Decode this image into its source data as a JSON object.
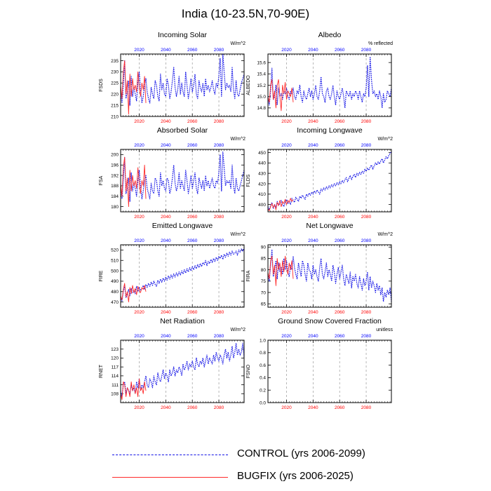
{
  "title": "India (10-23.5N,70-90E)",
  "colors": {
    "control": "#1010e6",
    "bugfix": "#ff2a2a",
    "top_axis": "#0000ff",
    "bottom_axis": "#ff0000",
    "grid": "#999999"
  },
  "legend": {
    "control_label": "CONTROL (yrs 2006-2099)",
    "bugfix_label": "BUGFIX (yrs 2006-2025)"
  },
  "chart_data": [
    {
      "type": "line",
      "title": "Incoming Solar",
      "units": "W/m^2",
      "ylabel": "FSDS",
      "xlim": [
        2006,
        2099
      ],
      "ylim": [
        210,
        238
      ],
      "yticks": [
        210,
        215,
        220,
        225,
        230,
        235
      ],
      "xticks": [
        2020,
        2040,
        2060,
        2080
      ],
      "grid_x": "dashed",
      "series": [
        {
          "name": "CONTROL",
          "x_start": 2006,
          "x_step": 1,
          "values": [
            222,
            216,
            224,
            235,
            218,
            221,
            226,
            215,
            228,
            219,
            223,
            220,
            217,
            225,
            230,
            222,
            216,
            219,
            224,
            227,
            221,
            218,
            216,
            223,
            220,
            218,
            226,
            224,
            219,
            217,
            229,
            222,
            225,
            220,
            219,
            227,
            224,
            218,
            221,
            226,
            232,
            223,
            219,
            222,
            228,
            220,
            225,
            221,
            219,
            230,
            224,
            218,
            222,
            227,
            221,
            224,
            229,
            220,
            218,
            226,
            223,
            221,
            225,
            219,
            227,
            222,
            224,
            221,
            223,
            226,
            222,
            220,
            225,
            223,
            228,
            236,
            219,
            238,
            230,
            222,
            225,
            223,
            224,
            221,
            232,
            222,
            218,
            226,
            220,
            219,
            222,
            225,
            227,
            229
          ]
        },
        {
          "name": "BUGFIX",
          "x_start": 2006,
          "x_step": 1,
          "values": [
            224,
            218,
            230,
            235,
            220,
            226,
            211,
            229,
            219,
            227,
            222,
            224,
            221,
            230,
            223,
            219,
            225,
            222,
            228,
            216
          ]
        }
      ]
    },
    {
      "type": "line",
      "title": "Albedo",
      "units": "% reflected",
      "ylabel": "ALBEDO",
      "xlim": [
        2006,
        2099
      ],
      "ylim": [
        14.65,
        15.75
      ],
      "yticks": [
        14.8,
        15.0,
        15.2,
        15.4,
        15.6
      ],
      "xticks": [
        2020,
        2040,
        2060,
        2080
      ],
      "grid_x": "dashed",
      "series": [
        {
          "name": "CONTROL",
          "x_start": 2006,
          "x_step": 1,
          "values": [
            15.0,
            14.85,
            15.1,
            15.5,
            14.95,
            15.0,
            15.2,
            14.85,
            15.15,
            15.0,
            15.05,
            14.95,
            15.1,
            15.05,
            15.15,
            15.0,
            14.95,
            15.1,
            15.05,
            15.15,
            15.0,
            14.95,
            15.1,
            15.05,
            15.2,
            15.0,
            14.9,
            15.1,
            15.0,
            14.95,
            15.05,
            15.15,
            15.0,
            15.1,
            14.95,
            15.05,
            15.2,
            15.0,
            14.95,
            15.1,
            15.35,
            15.05,
            15.0,
            14.9,
            15.1,
            15.15,
            15.0,
            14.95,
            15.05,
            15.2,
            15.0,
            14.85,
            15.1,
            15.0,
            14.95,
            15.05,
            15.15,
            15.0,
            14.8,
            15.1,
            15.05,
            15.0,
            15.1,
            14.95,
            15.05,
            15.0,
            15.1,
            15.05,
            14.95,
            15.1,
            15.0,
            14.9,
            15.05,
            15.0,
            15.15,
            15.55,
            15.0,
            15.7,
            15.3,
            15.05,
            15.1,
            15.0,
            15.05,
            14.95,
            15.1,
            15.0,
            14.8,
            15.05,
            14.9,
            14.95,
            15.1,
            15.05,
            15.0,
            15.15
          ]
        },
        {
          "name": "BUGFIX",
          "x_start": 2006,
          "x_step": 1,
          "values": [
            15.0,
            14.9,
            15.2,
            15.3,
            14.95,
            15.1,
            14.8,
            15.2,
            15.3,
            15.0,
            14.75,
            15.2,
            15.05,
            15.25,
            14.95,
            15.1,
            15.05,
            15.0,
            15.15,
            14.9
          ]
        }
      ]
    },
    {
      "type": "line",
      "title": "Absorbed Solar",
      "units": "W/m^2",
      "ylabel": "FSA",
      "xlim": [
        2006,
        2099
      ],
      "ylim": [
        178,
        202
      ],
      "yticks": [
        180,
        184,
        188,
        192,
        196,
        200
      ],
      "xticks": [
        2020,
        2040,
        2060,
        2080
      ],
      "grid_x": "dashed",
      "series": [
        {
          "name": "CONTROL",
          "x_start": 2006,
          "x_step": 1,
          "values": [
            188,
            183,
            190,
            199,
            185,
            187,
            191,
            182,
            193,
            186,
            189,
            187,
            184,
            190,
            194,
            188,
            183,
            186,
            190,
            192,
            187,
            185,
            183,
            189,
            186,
            185,
            191,
            190,
            186,
            184,
            193,
            188,
            190,
            187,
            186,
            191,
            190,
            185,
            187,
            191,
            196,
            189,
            186,
            188,
            193,
            187,
            190,
            188,
            186,
            194,
            190,
            185,
            188,
            192,
            187,
            190,
            193,
            187,
            185,
            191,
            189,
            187,
            190,
            186,
            192,
            188,
            190,
            187,
            189,
            191,
            188,
            187,
            190,
            189,
            193,
            200,
            186,
            201,
            195,
            188,
            190,
            189,
            190,
            187,
            196,
            188,
            185,
            191,
            187,
            186,
            188,
            190,
            192,
            194
          ]
        },
        {
          "name": "BUGFIX",
          "x_start": 2006,
          "x_step": 1,
          "values": [
            189,
            184,
            195,
            199,
            186,
            191,
            180,
            194,
            186,
            192,
            188,
            190,
            187,
            195,
            189,
            185,
            190,
            188,
            196,
            183
          ]
        }
      ]
    },
    {
      "type": "line",
      "title": "Incoming Longwave",
      "units": "W/m^2",
      "ylabel": "FLDS",
      "xlim": [
        2006,
        2099
      ],
      "ylim": [
        393,
        453
      ],
      "yticks": [
        400,
        410,
        420,
        430,
        440,
        450
      ],
      "xticks": [
        2020,
        2040,
        2060,
        2080
      ],
      "grid_x": "dashed",
      "series": [
        {
          "name": "CONTROL",
          "x_start": 2006,
          "x_step": 1,
          "values": [
            398,
            395,
            399,
            402,
            396,
            400,
            397,
            403,
            399,
            401,
            404,
            400,
            398,
            402,
            405,
            401,
            403,
            400,
            406,
            404,
            402,
            407,
            405,
            403,
            408,
            406,
            409,
            407,
            405,
            410,
            408,
            411,
            409,
            412,
            410,
            413,
            411,
            414,
            412,
            410,
            415,
            413,
            416,
            414,
            417,
            415,
            418,
            416,
            419,
            417,
            420,
            418,
            421,
            419,
            422,
            420,
            423,
            421,
            424,
            426,
            422,
            425,
            428,
            424,
            427,
            429,
            426,
            430,
            428,
            431,
            429,
            432,
            430,
            434,
            432,
            435,
            433,
            436,
            438,
            434,
            437,
            440,
            438,
            441,
            439,
            442,
            444,
            440,
            443,
            446,
            444,
            447,
            449,
            451
          ]
        },
        {
          "name": "BUGFIX",
          "x_start": 2006,
          "x_step": 1,
          "values": [
            396,
            394,
            398,
            401,
            397,
            400,
            395,
            402,
            399,
            404,
            398,
            403,
            401,
            405,
            400,
            404,
            402,
            406,
            403,
            405
          ]
        }
      ]
    },
    {
      "type": "line",
      "title": "Emitted Longwave",
      "units": "W/m^2",
      "ylabel": "FIRE",
      "xlim": [
        2006,
        2099
      ],
      "ylim": [
        465,
        525
      ],
      "yticks": [
        470,
        480,
        490,
        500,
        510,
        520
      ],
      "xticks": [
        2020,
        2040,
        2060,
        2080
      ],
      "grid_x": "dashed",
      "series": [
        {
          "name": "CONTROL",
          "x_start": 2006,
          "x_step": 1,
          "values": [
            475,
            471,
            480,
            486,
            474,
            478,
            482,
            476,
            483,
            479,
            481,
            478,
            485,
            480,
            484,
            481,
            483,
            486,
            482,
            487,
            484,
            488,
            485,
            489,
            486,
            490,
            487,
            485,
            491,
            488,
            492,
            489,
            493,
            490,
            494,
            491,
            495,
            492,
            496,
            493,
            497,
            494,
            498,
            495,
            499,
            496,
            500,
            497,
            501,
            498,
            502,
            499,
            503,
            500,
            504,
            501,
            505,
            502,
            506,
            503,
            507,
            504,
            508,
            506,
            510,
            505,
            509,
            507,
            511,
            508,
            512,
            509,
            513,
            510,
            514,
            512,
            515,
            511,
            516,
            513,
            517,
            514,
            518,
            515,
            519,
            516,
            517,
            519,
            515,
            520,
            518,
            521,
            519,
            522
          ]
        },
        {
          "name": "BUGFIX",
          "x_start": 2006,
          "x_step": 1,
          "values": [
            476,
            472,
            482,
            488,
            475,
            480,
            470,
            484,
            478,
            486,
            479,
            483,
            477,
            485,
            481,
            479,
            484,
            482,
            486,
            480
          ]
        }
      ]
    },
    {
      "type": "line",
      "title": "Net Longwave",
      "units": "W/m^2",
      "ylabel": "FIRA",
      "xlim": [
        2006,
        2099
      ],
      "ylim": [
        63.5,
        91
      ],
      "yticks": [
        65.0,
        70.0,
        75.0,
        80.0,
        85.0,
        90.0
      ],
      "xticks": [
        2020,
        2040,
        2060,
        2080
      ],
      "grid_x": "dashed",
      "series": [
        {
          "name": "CONTROL",
          "x_start": 2006,
          "x_step": 1,
          "values": [
            78,
            75,
            82,
            89,
            77,
            80,
            84,
            76,
            83,
            79,
            81,
            78,
            85,
            80,
            84,
            79,
            77,
            82,
            80,
            86,
            81,
            78,
            76,
            83,
            80,
            77,
            84,
            82,
            78,
            75,
            83,
            80,
            79,
            76,
            82,
            78,
            80,
            77,
            75,
            81,
            85,
            78,
            76,
            79,
            83,
            77,
            80,
            78,
            75,
            82,
            79,
            74,
            78,
            81,
            76,
            79,
            82,
            76,
            73,
            78,
            76,
            74,
            79,
            72,
            77,
            75,
            78,
            74,
            72,
            77,
            74,
            71,
            76,
            73,
            75,
            79,
            71,
            77,
            72,
            75,
            73,
            70,
            74,
            71,
            73,
            69,
            72,
            66,
            70,
            68,
            71,
            69,
            72,
            66
          ]
        },
        {
          "name": "BUGFIX",
          "x_start": 2006,
          "x_step": 1,
          "values": [
            79,
            76,
            84,
            86,
            78,
            82,
            73,
            85,
            80,
            83,
            77,
            84,
            79,
            86,
            81,
            78,
            83,
            80,
            84,
            76
          ]
        }
      ]
    },
    {
      "type": "line",
      "title": "Net Radiation",
      "units": "W/m^2",
      "ylabel": "RNET",
      "xlim": [
        2006,
        2099
      ],
      "ylim": [
        105,
        126
      ],
      "yticks": [
        108,
        111,
        114,
        117,
        120,
        123
      ],
      "xticks": [
        2020,
        2040,
        2060,
        2080
      ],
      "grid_x": "dashed",
      "series": [
        {
          "name": "CONTROL",
          "x_start": 2006,
          "x_step": 1,
          "values": [
            109,
            107,
            111,
            112,
            108,
            110,
            109,
            108,
            111,
            109,
            110,
            108,
            112,
            110,
            113,
            109,
            111,
            110,
            112,
            114,
            111,
            110,
            113,
            112,
            110,
            114,
            112,
            111,
            115,
            113,
            112,
            114,
            116,
            113,
            115,
            114,
            112,
            116,
            114,
            115,
            117,
            114,
            116,
            115,
            117,
            116,
            114,
            118,
            116,
            117,
            119,
            116,
            118,
            117,
            119,
            117,
            116,
            120,
            118,
            117,
            119,
            118,
            120,
            117,
            119,
            121,
            118,
            120,
            119,
            118,
            121,
            119,
            122,
            120,
            119,
            121,
            120,
            118,
            121,
            123,
            120,
            122,
            119,
            121,
            124,
            120,
            122,
            125,
            121,
            123,
            121,
            122,
            125,
            120
          ]
        },
        {
          "name": "BUGFIX",
          "x_start": 2006,
          "x_step": 1,
          "values": [
            108,
            106,
            112,
            111,
            107,
            110,
            109,
            107,
            112,
            109,
            111,
            108,
            110,
            107,
            113,
            109,
            110,
            108,
            112,
            109
          ]
        }
      ]
    },
    {
      "type": "line",
      "title": "Ground Snow Covered Fraction",
      "units": "unitless",
      "ylabel": "FSNO",
      "xlim": [
        2006,
        2099
      ],
      "ylim": [
        0.0,
        1.0
      ],
      "yticks": [
        0.0,
        0.2,
        0.4,
        0.6,
        0.8,
        1.0
      ],
      "xticks": [
        2020,
        2040,
        2060,
        2080
      ],
      "grid_x": "dashed",
      "series": []
    }
  ]
}
